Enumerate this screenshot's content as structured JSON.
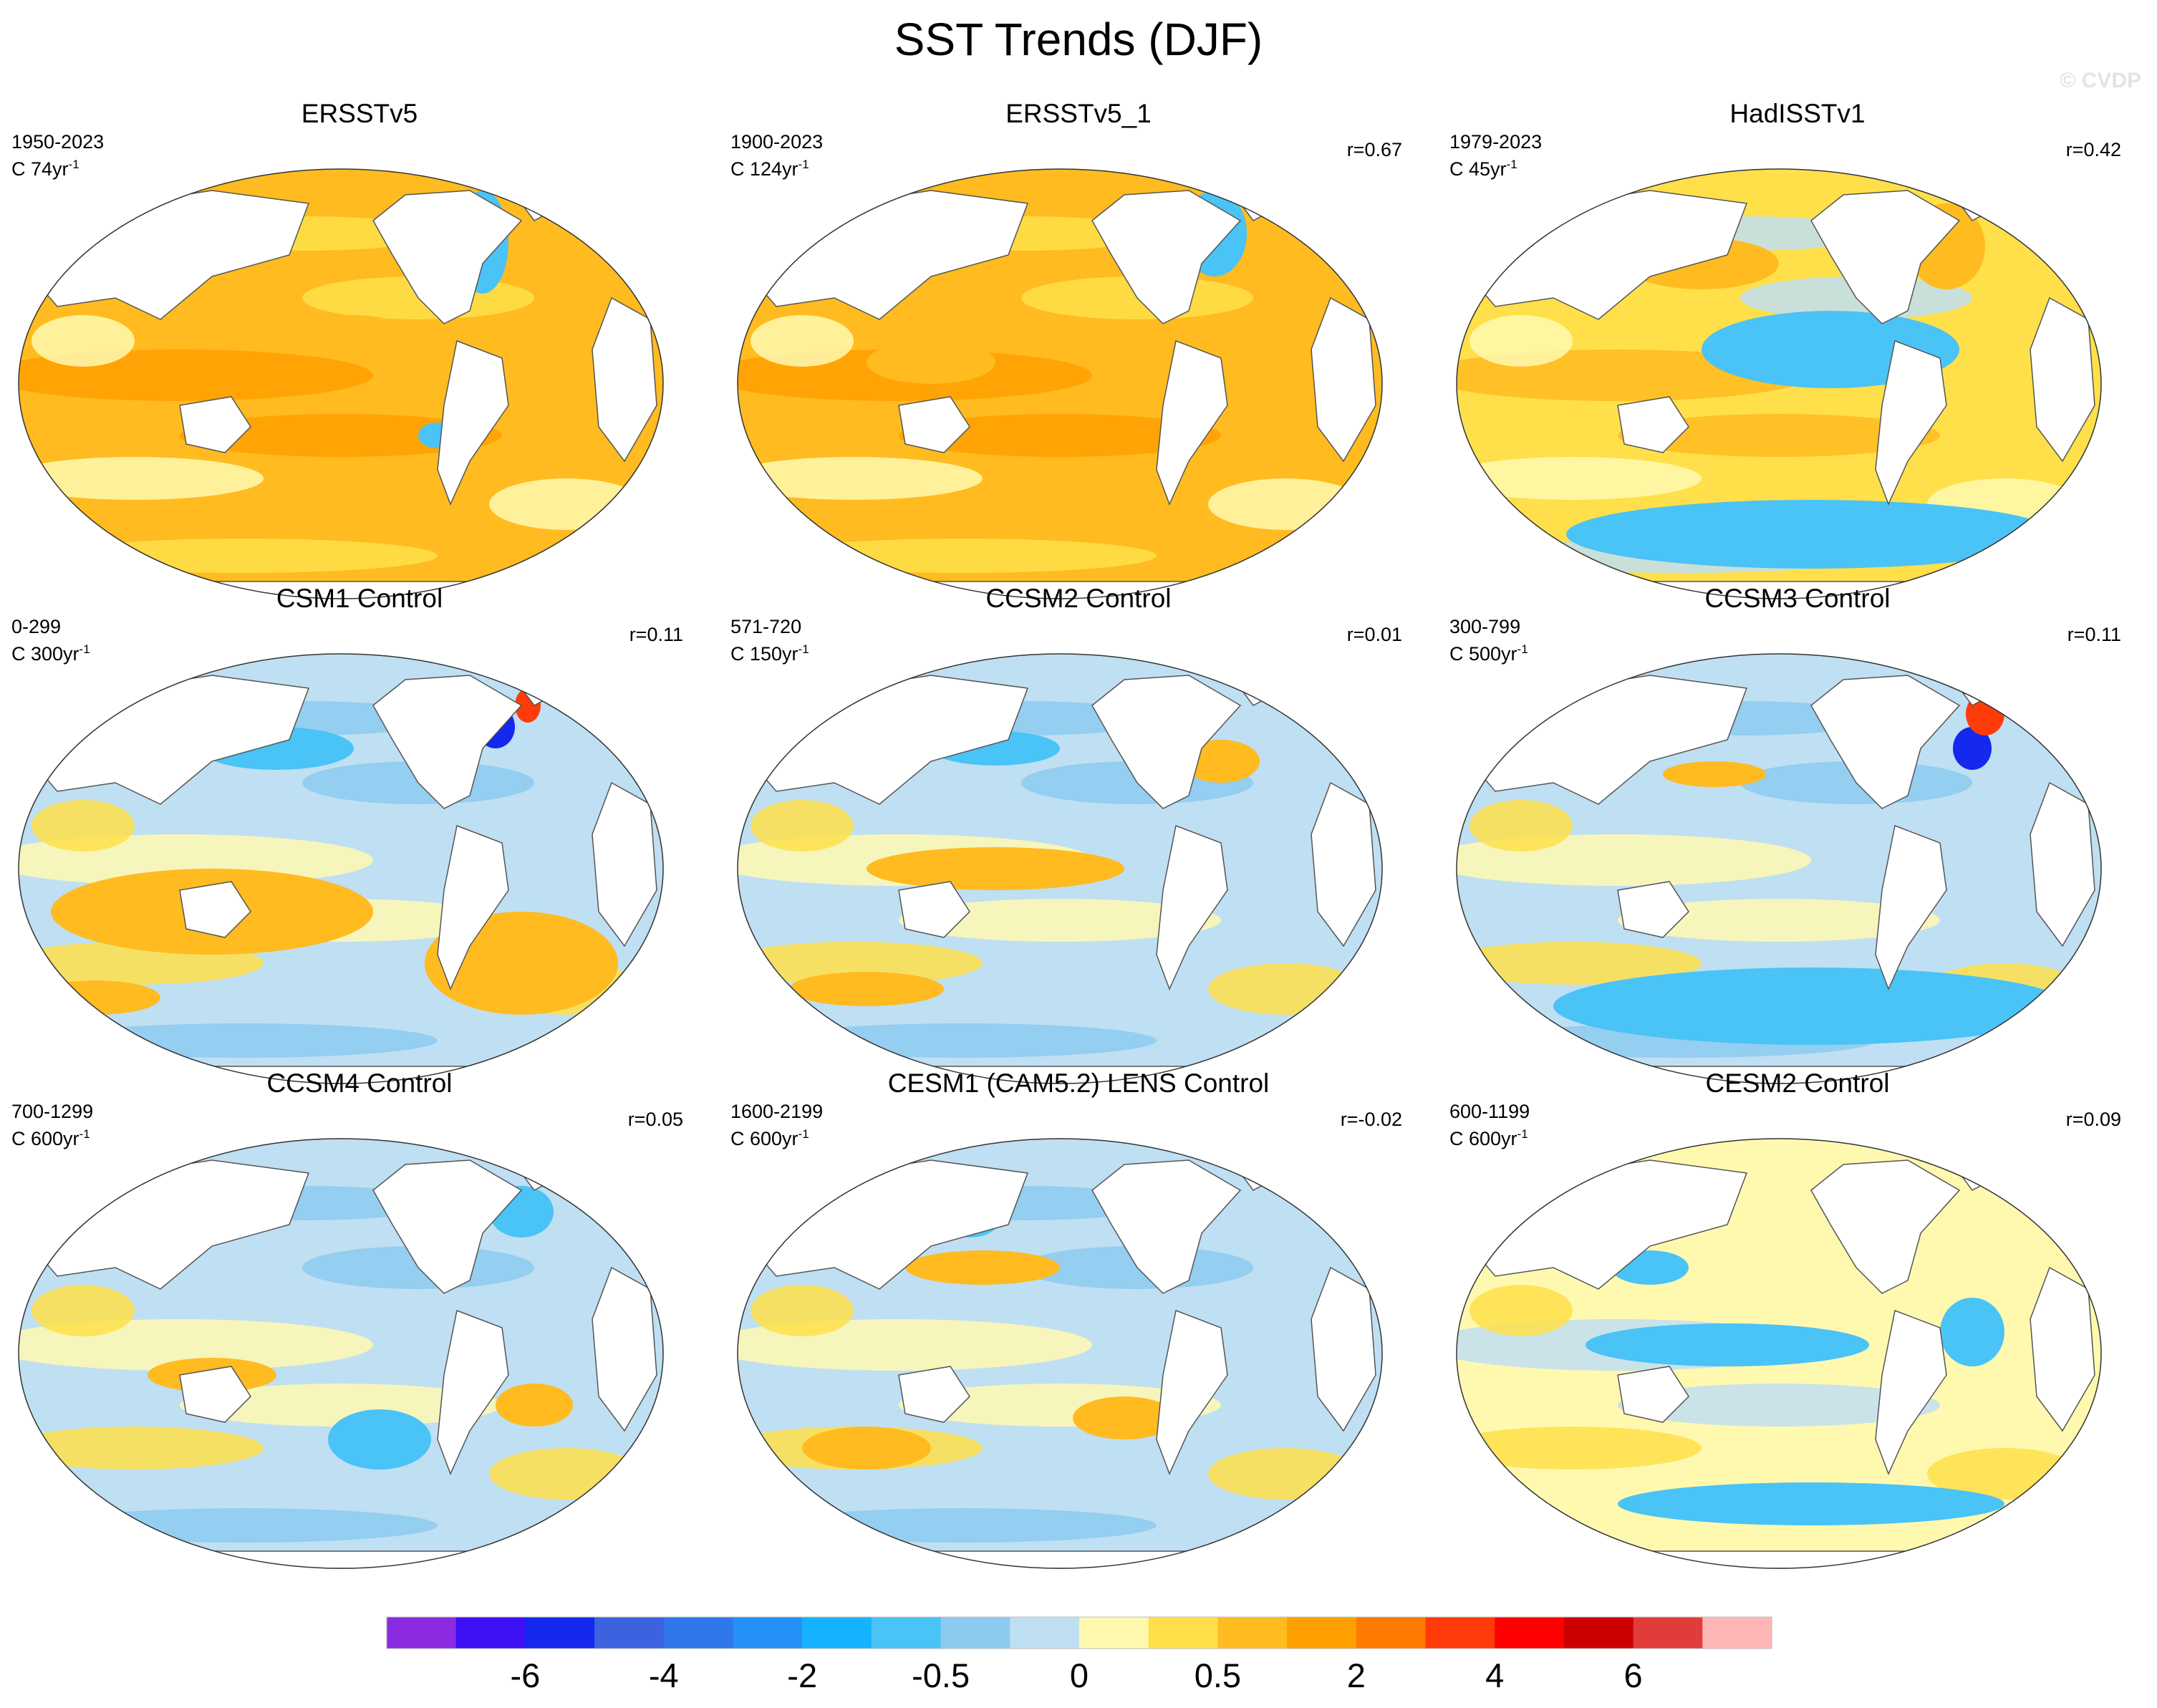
{
  "title": "SST Trends (DJF)",
  "watermark": "© CVDP",
  "panels": [
    {
      "name": "ERSSTv5",
      "period": "1950-2023",
      "length_text": "C 74yr",
      "length_sup": "-1",
      "r": "",
      "palette": "warm",
      "features": [
        [
          "warm",
          0.52,
          0.38,
          0.08,
          0.04
        ],
        [
          "cold",
          0.72,
          0.17,
          0.04,
          0.12
        ],
        [
          "cold",
          0.65,
          0.62,
          0.03,
          0.03
        ]
      ]
    },
    {
      "name": "ERSSTv5_1",
      "period": "1900-2023",
      "length_text": "C 124yr",
      "length_sup": "-1",
      "r": "r=0.67",
      "palette": "warm",
      "features": [
        [
          "cold",
          0.74,
          0.15,
          0.05,
          0.1
        ],
        [
          "warm",
          0.3,
          0.45,
          0.1,
          0.05
        ]
      ]
    },
    {
      "name": "HadISSTv1",
      "period": "1979-2023",
      "length_text": "C 45yr",
      "length_sup": "-1",
      "r": "r=0.42",
      "palette": "mixed",
      "features": [
        [
          "cold",
          0.58,
          0.42,
          0.2,
          0.09
        ],
        [
          "cold",
          0.55,
          0.85,
          0.38,
          0.08
        ],
        [
          "warm",
          0.38,
          0.22,
          0.12,
          0.06
        ],
        [
          "warm",
          0.76,
          0.18,
          0.06,
          0.1
        ]
      ]
    },
    {
      "name": "CSM1 Control",
      "period": "0-299",
      "length_text": "C 300yr",
      "length_sup": "-1",
      "r": "r=0.11",
      "palette": "cool",
      "features": [
        [
          "warm",
          0.3,
          0.6,
          0.25,
          0.1
        ],
        [
          "warm",
          0.78,
          0.72,
          0.15,
          0.12
        ],
        [
          "deep",
          0.74,
          0.17,
          0.03,
          0.05
        ],
        [
          "hot",
          0.79,
          0.12,
          0.02,
          0.04
        ],
        [
          "cold",
          0.4,
          0.22,
          0.12,
          0.05
        ],
        [
          "warm",
          0.12,
          0.8,
          0.1,
          0.04
        ]
      ]
    },
    {
      "name": "CCSM2 Control",
      "period": "571-720",
      "length_text": "C 150yr",
      "length_sup": "-1",
      "r": "r=0.01",
      "palette": "cool",
      "features": [
        [
          "warm",
          0.4,
          0.5,
          0.2,
          0.05
        ],
        [
          "cold",
          0.4,
          0.22,
          0.1,
          0.04
        ],
        [
          "warm",
          0.75,
          0.25,
          0.06,
          0.05
        ],
        [
          "warm",
          0.2,
          0.78,
          0.12,
          0.04
        ]
      ]
    },
    {
      "name": "CCSM3 Control",
      "period": "300-799",
      "length_text": "C 500yr",
      "length_sup": "-1",
      "r": "r=0.11",
      "palette": "cool",
      "features": [
        [
          "cold",
          0.55,
          0.82,
          0.4,
          0.09
        ],
        [
          "deep",
          0.8,
          0.22,
          0.03,
          0.05
        ],
        [
          "hot",
          0.82,
          0.14,
          0.03,
          0.05
        ],
        [
          "warm",
          0.4,
          0.28,
          0.08,
          0.03
        ]
      ]
    },
    {
      "name": "CCSM4 Control",
      "period": "700-1299",
      "length_text": "C 600yr",
      "length_sup": "-1",
      "r": "r=0.05",
      "palette": "cool",
      "features": [
        [
          "cold",
          0.56,
          0.7,
          0.08,
          0.07
        ],
        [
          "cold",
          0.78,
          0.17,
          0.05,
          0.06
        ],
        [
          "warm",
          0.3,
          0.55,
          0.1,
          0.04
        ],
        [
          "warm",
          0.8,
          0.62,
          0.06,
          0.05
        ]
      ]
    },
    {
      "name": "CESM1 (CAM5.2) LENS Control",
      "period": "1600-2199",
      "length_text": "C 600yr",
      "length_sup": "-1",
      "r": "r=-0.02",
      "palette": "cool",
      "features": [
        [
          "warm",
          0.38,
          0.3,
          0.12,
          0.04
        ],
        [
          "cold",
          0.36,
          0.18,
          0.05,
          0.05
        ],
        [
          "warm",
          0.6,
          0.65,
          0.08,
          0.05
        ],
        [
          "warm",
          0.2,
          0.72,
          0.1,
          0.05
        ]
      ]
    },
    {
      "name": "CESM2 Control",
      "period": "600-1199",
      "length_text": "C 600yr",
      "length_sup": "-1",
      "r": "r=0.09",
      "palette": "pale",
      "features": [
        [
          "cold",
          0.42,
          0.48,
          0.22,
          0.05
        ],
        [
          "cold",
          0.3,
          0.3,
          0.06,
          0.04
        ],
        [
          "cold",
          0.8,
          0.45,
          0.05,
          0.08
        ],
        [
          "cold",
          0.55,
          0.85,
          0.3,
          0.05
        ]
      ]
    }
  ],
  "colorbar": {
    "colors": [
      "#8a2be2",
      "#3f0ff5",
      "#1428ee",
      "#3c62e0",
      "#2f76ea",
      "#2590f7",
      "#15b3ff",
      "#4ac3f6",
      "#8ccbee",
      "#bfdff3",
      "#fff9b0",
      "#ffe04a",
      "#ffbb20",
      "#ffa000",
      "#ff7a00",
      "#ff3b0a",
      "#ff0000",
      "#cc0000",
      "#e03c3c",
      "#ffb6b6"
    ],
    "tick_labels": [
      "-6",
      "-4",
      "-2",
      "-0.5",
      "0",
      "0.5",
      "2",
      "4",
      "6"
    ],
    "tick_boundaries": [
      2,
      4,
      6,
      8,
      10,
      12,
      14,
      16,
      18
    ]
  }
}
